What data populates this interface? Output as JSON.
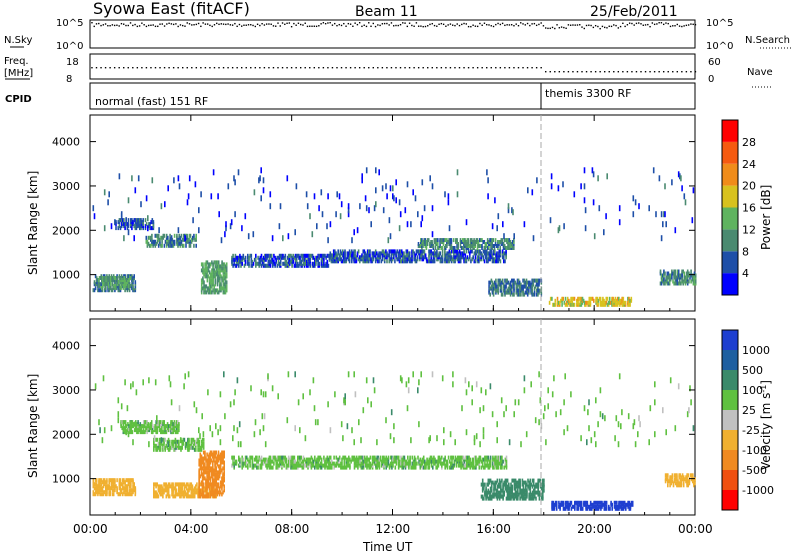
{
  "header": {
    "station": "Syowa East (fitACF)",
    "beam": "Beam 11",
    "date": "25/Feb/2011"
  },
  "panels": {
    "nsky_label": "N.Sky",
    "nsky_ticks": [
      "10^5",
      "10^0"
    ],
    "nsearch_label": "N.Search",
    "nsearch_ticks": [
      "10^5",
      "10^0"
    ],
    "freq_label_1": "Freq.",
    "freq_label_2": "[MHz]",
    "freq_ticks": [
      "18",
      "8"
    ],
    "nave_label": "Nave",
    "nave_ticks": [
      "60",
      "0"
    ],
    "cpid_label": "CPID",
    "cpid_modes": [
      {
        "label": "normal (fast) 151 RF",
        "start_hour": 0
      },
      {
        "label": "themis 3300 RF",
        "start_hour": 18
      }
    ]
  },
  "axes": {
    "xlabel": "Time UT",
    "xticks": [
      "00:00",
      "04:00",
      "08:00",
      "12:00",
      "16:00",
      "20:00",
      "00:00"
    ],
    "ylabel": "Slant Range [km]",
    "yticks": [
      "1000",
      "2000",
      "3000",
      "4000"
    ]
  },
  "power_bar": {
    "label": "Power [dB]",
    "ticks": [
      "4",
      "8",
      "12",
      "16",
      "20",
      "24",
      "28"
    ],
    "colors": [
      "#0000ff",
      "#1e4fa8",
      "#4a8a70",
      "#5fb35f",
      "#d8c21f",
      "#f08c1a",
      "#f55a10",
      "#ff0000"
    ]
  },
  "velocity_bar": {
    "label": "Velocity [m s-1]",
    "ticks": [
      "1000",
      "500",
      "100",
      "25",
      "-25",
      "-100",
      "-500",
      "-1000"
    ],
    "colors": [
      "#1e3fd0",
      "#1e5fa0",
      "#3a8a6a",
      "#5fc040",
      "#c0c0c0",
      "#f0b030",
      "#f08a20",
      "#f05010",
      "#ff0000"
    ]
  },
  "chart_data": [
    {
      "type": "heatmap",
      "title": "Power",
      "xlabel": "Time UT",
      "ylabel": "Slant Range [km]",
      "xlim": [
        0,
        24
      ],
      "ylim": [
        180,
        4600
      ],
      "colorbar_label": "Power [dB]",
      "regions": [
        {
          "t0": 0.1,
          "t1": 1.8,
          "r0": 650,
          "r1": 1000,
          "value": 8
        },
        {
          "t0": 0.3,
          "t1": 1.6,
          "r0": 700,
          "r1": 950,
          "value": 12
        },
        {
          "t0": 1.0,
          "t1": 2.5,
          "r0": 2050,
          "r1": 2250,
          "value": 6
        },
        {
          "t0": 2.2,
          "t1": 4.2,
          "r0": 1650,
          "r1": 1900,
          "value": 10
        },
        {
          "t0": 4.4,
          "t1": 5.4,
          "r0": 600,
          "r1": 1300,
          "value": 12
        },
        {
          "t0": 5.6,
          "t1": 9.5,
          "r0": 1200,
          "r1": 1450,
          "value": 6
        },
        {
          "t0": 9.5,
          "t1": 16.5,
          "r0": 1300,
          "r1": 1550,
          "value": 6
        },
        {
          "t0": 13.0,
          "t1": 16.8,
          "r0": 1600,
          "r1": 1800,
          "value": 10
        },
        {
          "t0": 15.8,
          "t1": 17.9,
          "r0": 550,
          "r1": 900,
          "value": 8
        },
        {
          "t0": 18.2,
          "t1": 21.5,
          "r0": 320,
          "r1": 500,
          "value": 18
        },
        {
          "t0": 22.6,
          "t1": 24.0,
          "r0": 800,
          "r1": 1100,
          "value": 10
        },
        {
          "t0": 0.1,
          "t1": 24.0,
          "r0": 1800,
          "r1": 3400,
          "value": 5,
          "sparse": true
        }
      ]
    },
    {
      "type": "heatmap",
      "title": "Velocity",
      "xlabel": "Time UT",
      "ylabel": "Slant Range [km]",
      "xlim": [
        0,
        24
      ],
      "ylim": [
        180,
        4600
      ],
      "colorbar_label": "Velocity [m s-1]",
      "regions": [
        {
          "t0": 0.1,
          "t1": 1.8,
          "r0": 650,
          "r1": 1000,
          "value": -250
        },
        {
          "t0": 1.2,
          "t1": 3.5,
          "r0": 2050,
          "r1": 2300,
          "value": 0
        },
        {
          "t0": 2.5,
          "t1": 4.5,
          "r0": 1650,
          "r1": 1900,
          "value": 0
        },
        {
          "t0": 2.5,
          "t1": 5.0,
          "r0": 600,
          "r1": 900,
          "value": -300
        },
        {
          "t0": 4.3,
          "t1": 5.3,
          "r0": 600,
          "r1": 1600,
          "value": -700
        },
        {
          "t0": 5.6,
          "t1": 16.5,
          "r0": 1250,
          "r1": 1500,
          "value": 0
        },
        {
          "t0": 15.5,
          "t1": 18.0,
          "r0": 550,
          "r1": 1000,
          "value": 60
        },
        {
          "t0": 18.3,
          "t1": 21.5,
          "r0": 320,
          "r1": 500,
          "value": 700
        },
        {
          "t0": 22.8,
          "t1": 24.0,
          "r0": 850,
          "r1": 1100,
          "value": -300
        },
        {
          "t0": 0.1,
          "t1": 24.0,
          "r0": 1800,
          "r1": 3400,
          "value": 0,
          "sparse": true
        }
      ]
    }
  ]
}
